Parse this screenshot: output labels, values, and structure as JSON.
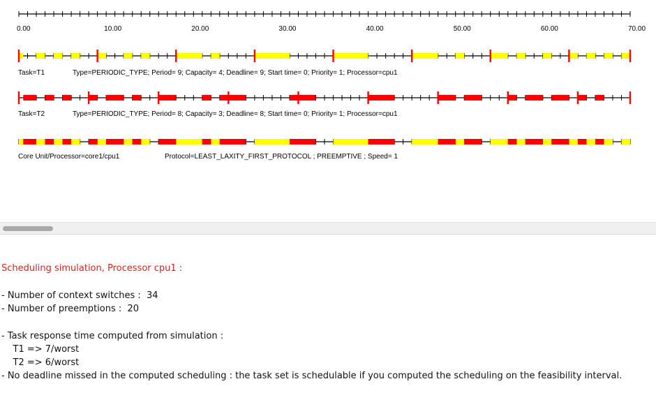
{
  "axis": {
    "min": 0,
    "max": 70,
    "ticks": [
      "0.00",
      "10.00",
      "20.00",
      "30.00",
      "40.00",
      "50.00",
      "60.00",
      "70.00"
    ]
  },
  "colors": {
    "exec_t1": "#ffff00",
    "exec_t2": "#ff0000",
    "arrival": "#ff0000",
    "line": "#000000",
    "report_title": "#e02020"
  },
  "tasks": [
    {
      "id": "T1",
      "label": "Task=T1",
      "info": "Type=PERIODIC_TYPE; Period= 9; Capacity= 4; Deadline= 9; Start time= 0; Priority= 1; Processor=cpu1",
      "period": 9,
      "color": "#ffff00",
      "segments": [
        [
          0,
          0.5
        ],
        [
          2,
          3
        ],
        [
          4,
          5
        ],
        [
          6,
          7
        ],
        [
          9,
          10
        ],
        [
          12,
          13
        ],
        [
          14,
          15
        ],
        [
          18,
          21
        ],
        [
          22,
          23
        ],
        [
          27,
          31
        ],
        [
          36,
          40
        ],
        [
          45,
          48
        ],
        [
          50,
          51
        ],
        [
          54,
          56
        ],
        [
          57,
          58
        ],
        [
          60,
          61
        ],
        [
          63,
          64
        ],
        [
          65,
          66
        ],
        [
          67,
          68
        ],
        [
          69,
          70
        ]
      ]
    },
    {
      "id": "T2",
      "label": "Task=T2",
      "info": "Type=PERIODIC_TYPE; Period= 8; Capacity= 3; Deadline= 8; Start time= 0; Priority= 1; Processor=cpu1",
      "period": 8,
      "color": "#ff0000",
      "segments": [
        [
          0.5,
          2
        ],
        [
          3,
          4
        ],
        [
          5,
          6
        ],
        [
          8,
          9
        ],
        [
          10,
          12
        ],
        [
          13,
          14
        ],
        [
          16,
          18
        ],
        [
          21,
          22
        ],
        [
          23,
          26
        ],
        [
          31,
          34
        ],
        [
          40,
          43
        ],
        [
          48,
          50
        ],
        [
          51,
          53
        ],
        [
          56,
          57
        ],
        [
          58,
          60
        ],
        [
          61,
          63
        ],
        [
          64,
          65
        ],
        [
          66,
          67
        ]
      ]
    }
  ],
  "core": {
    "label": "Core Unit/Processor=core1/cpu1",
    "info": "Protocol=LEAST_LAXITY_FIRST_PROTOCOL ; PREEMPTIVE ; Speed= 1"
  },
  "report": {
    "title": "Scheduling simulation, Processor cpu1 :",
    "context_switches": "- Number of context switches :  34",
    "preemptions": "- Number of preemptions :  20",
    "response_heading": "- Task response time computed from simulation :",
    "t1": "    T1 => 7/worst",
    "t2": "    T2 => 6/worst",
    "deadline": "- No deadline missed in the computed scheduling : the task set is schedulable if you computed the scheduling on the feasibility interval."
  }
}
